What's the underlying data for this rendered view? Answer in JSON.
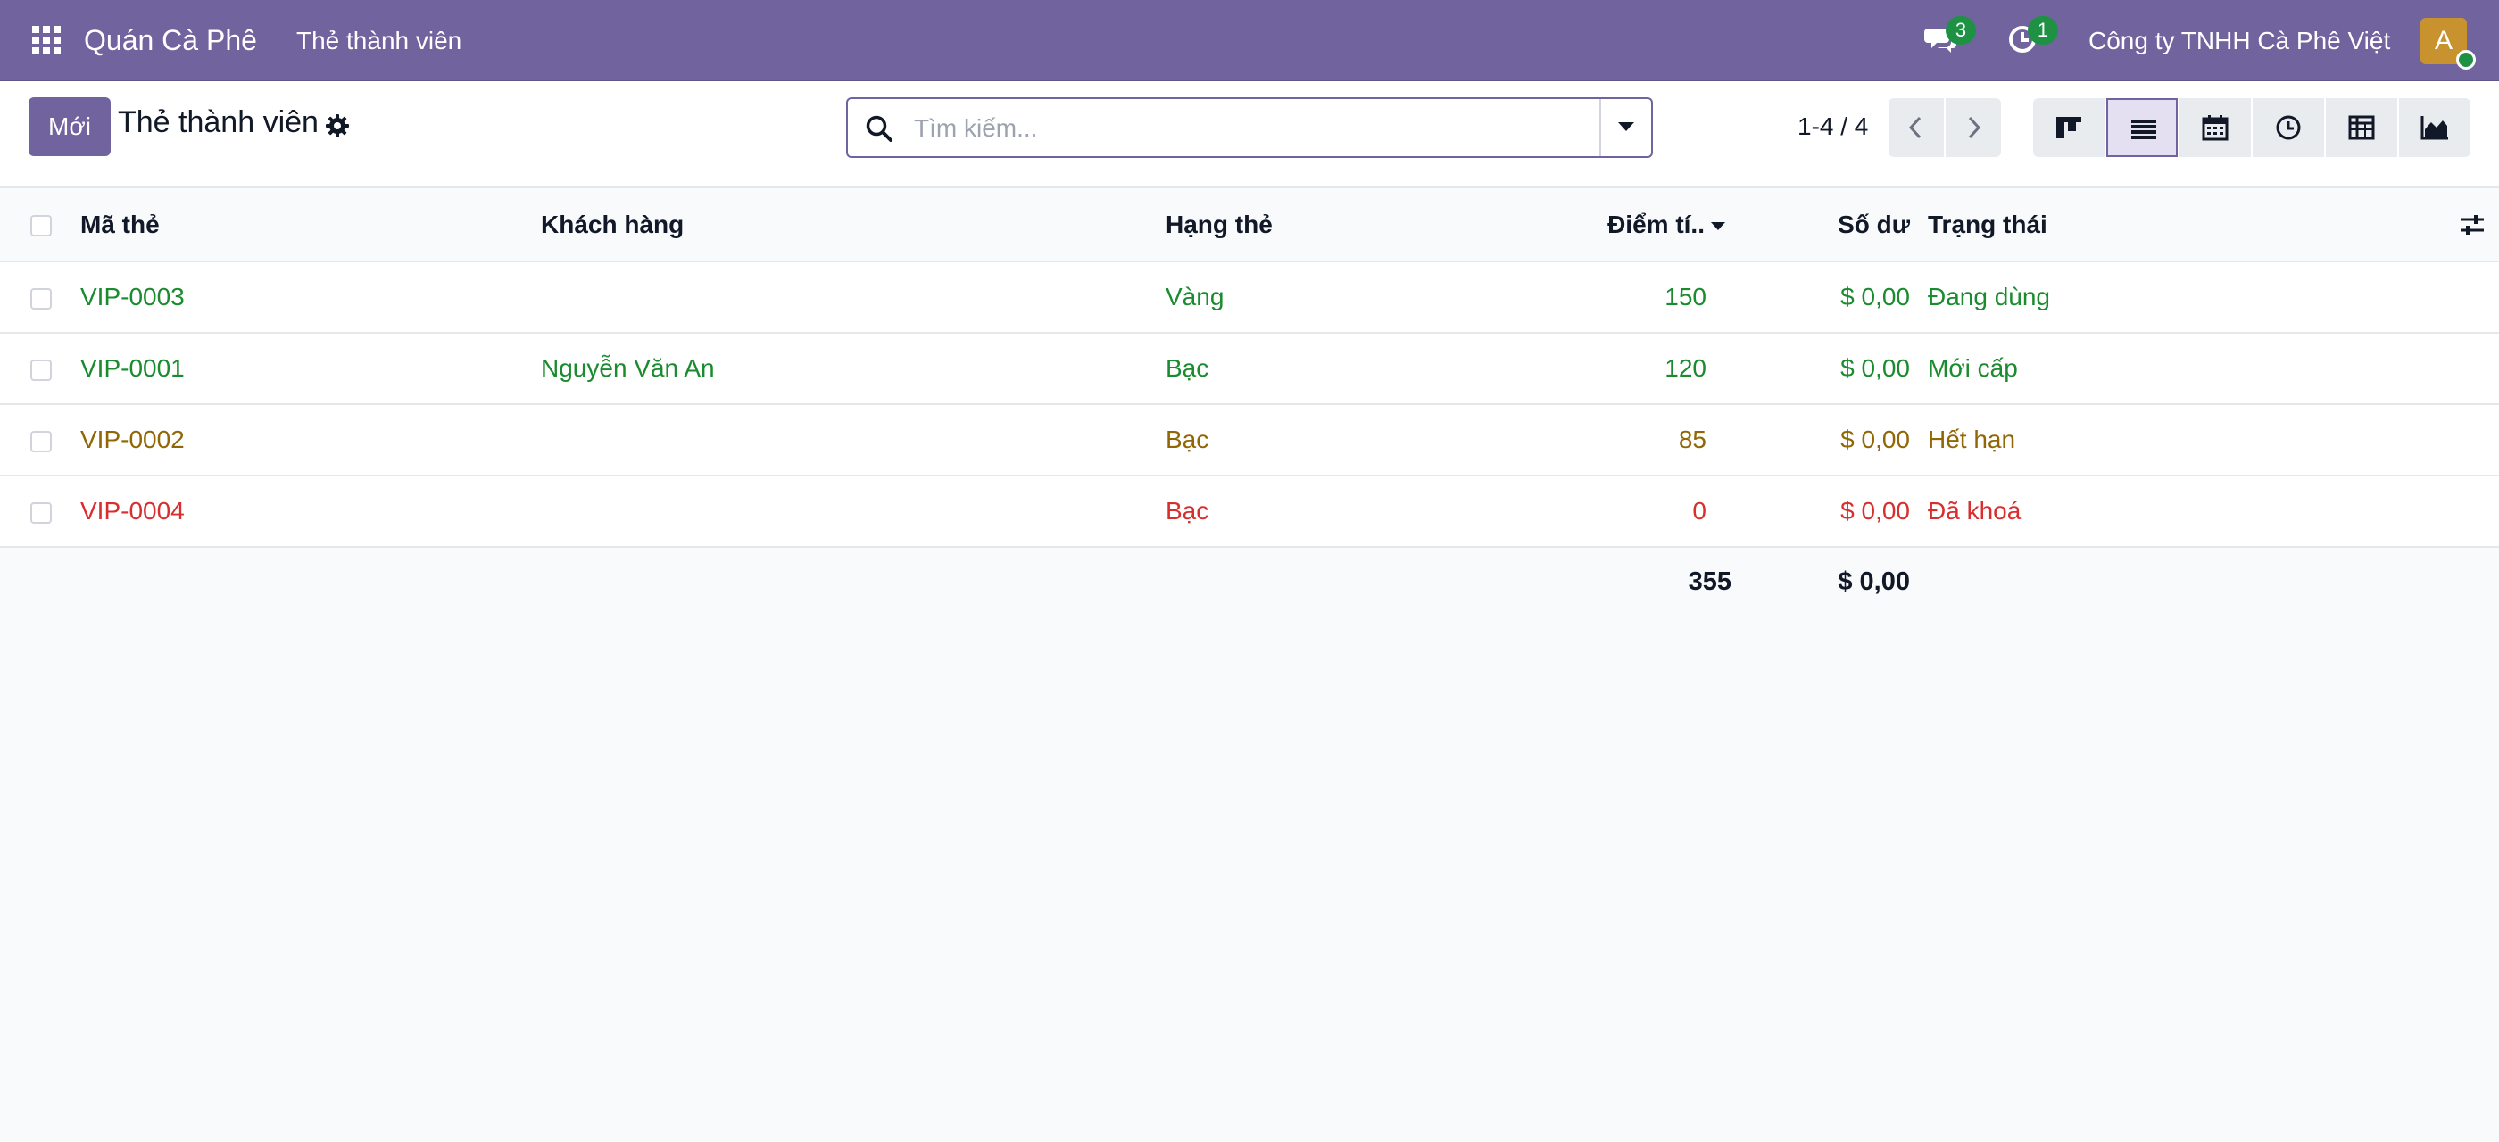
{
  "app": {
    "brand": "Quán Cà Phê",
    "menu_item": "Thẻ thành viên",
    "messages_count": "3",
    "activities_count": "1",
    "company": "Công ty TNHH Cà Phê Việt",
    "avatar_letter": "A",
    "accent_color": "#71639e"
  },
  "control": {
    "new_button": "Mới",
    "page_title": "Thẻ thành viên",
    "search_placeholder": "Tìm kiếm...",
    "pager": "1-4 / 4",
    "views": [
      "kanban-view-icon",
      "list-view-icon",
      "calendar-view-icon",
      "activity-view-icon",
      "pivot-view-icon",
      "graph-view-icon"
    ],
    "active_view": "list"
  },
  "table": {
    "headers": {
      "code": "Mã thẻ",
      "customer": "Khách hàng",
      "tier": "Hạng thẻ",
      "points": "Điểm tí..",
      "balance": "Số dư",
      "status": "Trạng thái"
    },
    "rows": [
      {
        "code": "VIP-0003",
        "customer": "",
        "tier": "Vàng",
        "points": "150",
        "balance": "$ 0,00",
        "status": "Đang dùng",
        "color": "#1a8b2e"
      },
      {
        "code": "VIP-0001",
        "customer": "Nguyễn Văn An",
        "tier": "Bạc",
        "points": "120",
        "balance": "$ 0,00",
        "status": "Mới cấp",
        "color": "#1a8b2e"
      },
      {
        "code": "VIP-0002",
        "customer": "",
        "tier": "Bạc",
        "points": "85",
        "balance": "$ 0,00",
        "status": "Hết hạn",
        "color": "#916705"
      },
      {
        "code": "VIP-0004",
        "customer": "",
        "tier": "Bạc",
        "points": "0",
        "balance": "$ 0,00",
        "status": "Đã khoá",
        "color": "#d92e2e"
      }
    ],
    "totals": {
      "points": "355",
      "balance": "$ 0,00"
    }
  }
}
